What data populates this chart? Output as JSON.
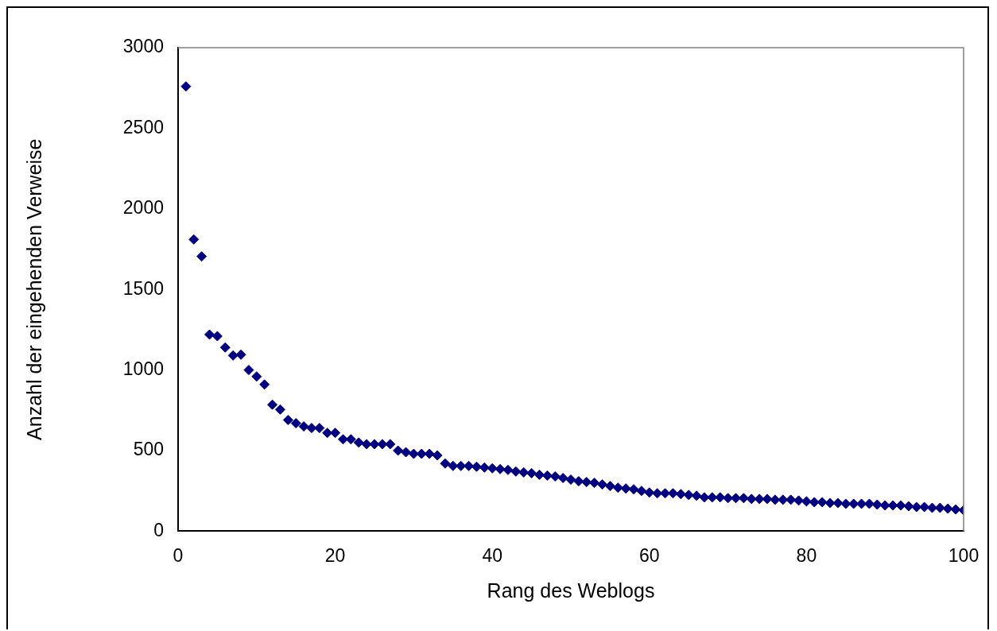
{
  "chart_data": {
    "type": "scatter",
    "xlabel": "Rang des Weblogs",
    "ylabel": "Anzahl der eingehenden Verweise",
    "x": [
      1,
      2,
      3,
      4,
      5,
      6,
      7,
      8,
      9,
      10,
      11,
      12,
      13,
      14,
      15,
      16,
      17,
      18,
      19,
      20,
      21,
      22,
      23,
      24,
      25,
      26,
      27,
      28,
      29,
      30,
      31,
      32,
      33,
      34,
      35,
      36,
      37,
      38,
      39,
      40,
      41,
      42,
      43,
      44,
      45,
      46,
      47,
      48,
      49,
      50,
      51,
      52,
      53,
      54,
      55,
      56,
      57,
      58,
      59,
      60,
      61,
      62,
      63,
      64,
      65,
      66,
      67,
      68,
      69,
      70,
      71,
      72,
      73,
      74,
      75,
      76,
      77,
      78,
      79,
      80,
      81,
      82,
      83,
      84,
      85,
      86,
      87,
      88,
      89,
      90,
      91,
      92,
      93,
      94,
      95,
      96,
      97,
      98,
      99,
      100
    ],
    "series": [
      {
        "color": "#000080",
        "values": [
          2760,
          1810,
          1705,
          1220,
          1210,
          1140,
          1090,
          1095,
          1000,
          960,
          910,
          785,
          755,
          690,
          670,
          650,
          640,
          640,
          610,
          610,
          570,
          570,
          550,
          540,
          540,
          540,
          540,
          500,
          490,
          480,
          480,
          480,
          470,
          420,
          405,
          405,
          405,
          400,
          395,
          390,
          385,
          380,
          370,
          365,
          360,
          350,
          345,
          340,
          330,
          320,
          310,
          305,
          300,
          290,
          280,
          270,
          265,
          260,
          250,
          240,
          235,
          235,
          235,
          230,
          225,
          220,
          210,
          210,
          210,
          205,
          205,
          205,
          200,
          200,
          200,
          195,
          195,
          195,
          190,
          185,
          180,
          180,
          175,
          175,
          170,
          170,
          170,
          170,
          165,
          160,
          160,
          160,
          155,
          150,
          150,
          145,
          145,
          140,
          135,
          130
        ]
      }
    ],
    "xlim": [
      0,
      100
    ],
    "xticks": [
      0,
      20,
      40,
      60,
      80,
      100
    ],
    "ylim": [
      0,
      3000
    ],
    "yticks": [
      0,
      500,
      1000,
      1500,
      2000,
      2500,
      3000
    ],
    "grid": false,
    "legend": false,
    "marker": "diamond"
  }
}
